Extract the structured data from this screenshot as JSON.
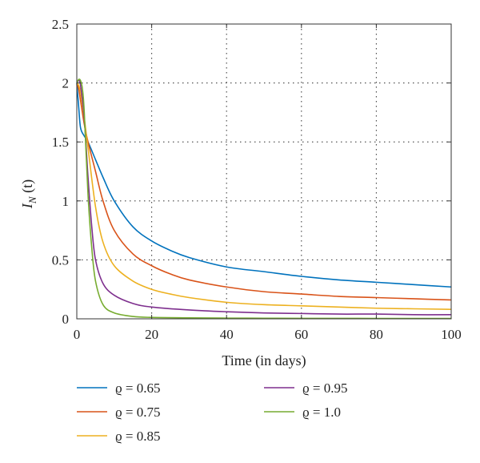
{
  "chart_data": {
    "type": "line",
    "xlabel": "Time (in days)",
    "ylabel": {
      "main": "I",
      "sub": "N",
      "rest": " (t)"
    },
    "xlim": [
      0,
      100
    ],
    "ylim": [
      0,
      2.5
    ],
    "xticks": [
      "0",
      "20",
      "40",
      "60",
      "80",
      "100"
    ],
    "yticks": [
      "0",
      "0.5",
      "1",
      "1.5",
      "2",
      "2.5"
    ],
    "grid": "dotted",
    "legend_position": "below",
    "series": [
      {
        "name": "ϱ = 0.65",
        "color": "#0072BD",
        "x": [
          0,
          0.5,
          1,
          2,
          3,
          5,
          7,
          10,
          15,
          20,
          25,
          30,
          40,
          50,
          60,
          70,
          80,
          90,
          100
        ],
        "y": [
          2.0,
          1.8,
          1.62,
          1.55,
          1.5,
          1.35,
          1.2,
          1.0,
          0.78,
          0.66,
          0.58,
          0.52,
          0.44,
          0.4,
          0.36,
          0.33,
          0.31,
          0.29,
          0.27
        ]
      },
      {
        "name": "ϱ = 0.75",
        "color": "#D95319",
        "x": [
          0,
          0.5,
          1,
          2,
          3,
          5,
          7,
          10,
          15,
          20,
          25,
          30,
          40,
          50,
          60,
          70,
          80,
          90,
          100
        ],
        "y": [
          2.0,
          1.95,
          1.85,
          1.65,
          1.5,
          1.25,
          1.0,
          0.75,
          0.55,
          0.45,
          0.38,
          0.33,
          0.27,
          0.23,
          0.21,
          0.19,
          0.18,
          0.17,
          0.16
        ]
      },
      {
        "name": "ϱ = 0.85",
        "color": "#EDB120",
        "x": [
          0,
          0.5,
          1,
          2,
          3,
          5,
          7,
          10,
          15,
          20,
          25,
          30,
          40,
          50,
          60,
          70,
          80,
          90,
          100
        ],
        "y": [
          2.0,
          1.98,
          1.92,
          1.7,
          1.45,
          0.95,
          0.65,
          0.45,
          0.32,
          0.25,
          0.21,
          0.18,
          0.14,
          0.12,
          0.11,
          0.1,
          0.09,
          0.085,
          0.08
        ]
      },
      {
        "name": "ϱ = 0.95",
        "color": "#7E2F8E",
        "x": [
          0,
          0.5,
          1,
          2,
          3,
          4,
          5,
          7,
          10,
          15,
          20,
          30,
          40,
          50,
          60,
          70,
          80,
          90,
          100
        ],
        "y": [
          2.0,
          2.02,
          1.98,
          1.7,
          1.2,
          0.78,
          0.5,
          0.3,
          0.2,
          0.13,
          0.1,
          0.075,
          0.06,
          0.05,
          0.045,
          0.04,
          0.04,
          0.035,
          0.035
        ]
      },
      {
        "name": "ϱ = 1.0",
        "color": "#77AC30",
        "x": [
          0,
          0.5,
          1,
          1.5,
          2,
          3,
          4,
          5,
          7,
          10,
          15,
          20,
          30,
          40,
          50,
          60,
          70,
          80,
          90,
          100
        ],
        "y": [
          2.0,
          2.03,
          2.02,
          1.95,
          1.75,
          1.05,
          0.6,
          0.32,
          0.12,
          0.05,
          0.02,
          0.012,
          0.008,
          0.006,
          0.005,
          0.004,
          0.004,
          0.003,
          0.003,
          0.003
        ]
      }
    ]
  }
}
